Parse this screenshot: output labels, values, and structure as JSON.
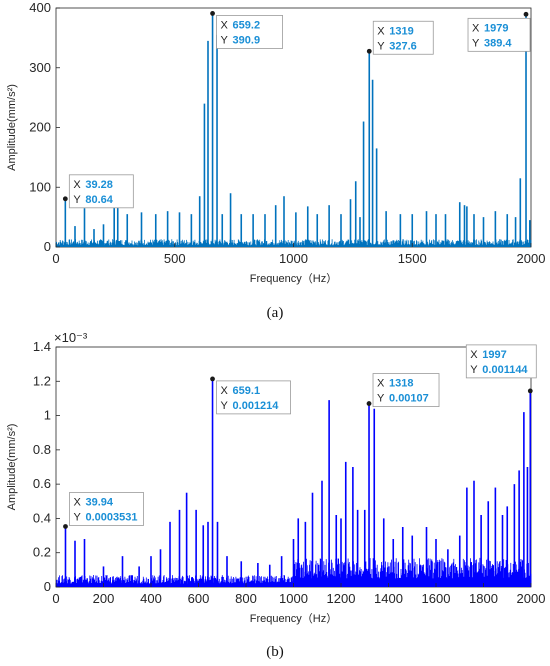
{
  "chart_data": [
    {
      "type": "line",
      "panel_label": "a",
      "xlabel": "Frequency（Hz）",
      "ylabel": "Amplitude(mm/s²)",
      "xlim": [
        0,
        2000
      ],
      "ylim": [
        0,
        400
      ],
      "xticks": [
        "0",
        "500",
        "1000",
        "1500",
        "2000"
      ],
      "yticks": [
        "0",
        "100",
        "200",
        "300",
        "400"
      ],
      "line_color": "#0072BD",
      "grid": false,
      "series": [
        {
          "x": [
            39.28,
            80,
            120,
            160,
            200,
            245,
            260,
            300,
            360,
            420,
            470,
            520,
            570,
            605,
            625,
            640,
            659.2,
            678,
            700,
            735,
            780,
            830,
            880,
            925,
            960,
            1010,
            1060,
            1100,
            1150,
            1200,
            1240,
            1262,
            1280,
            1295,
            1319,
            1333,
            1350,
            1390,
            1450,
            1500,
            1560,
            1600,
            1640,
            1700,
            1720,
            1730,
            1760,
            1800,
            1850,
            1900,
            1935,
            1955,
            1979,
            1995
          ],
          "y": [
            80.64,
            35,
            65,
            30,
            38,
            80,
            70,
            55,
            58,
            55,
            60,
            58,
            55,
            85,
            240,
            345,
            390.9,
            355,
            55,
            90,
            55,
            55,
            55,
            70,
            85,
            58,
            68,
            55,
            70,
            55,
            80,
            110,
            50,
            210,
            327.6,
            280,
            165,
            60,
            55,
            55,
            60,
            55,
            55,
            75,
            70,
            68,
            55,
            50,
            60,
            55,
            50,
            115,
            389.4,
            45
          ]
        }
      ],
      "annotations": [
        {
          "x": 39.28,
          "y": 80.64,
          "x_label": "X",
          "y_label": "Y",
          "x_text": "39.28",
          "y_text": "80.64"
        },
        {
          "x": 659.2,
          "y": 390.9,
          "x_label": "X",
          "y_label": "Y",
          "x_text": "659.2",
          "y_text": "390.9"
        },
        {
          "x": 1319,
          "y": 327.6,
          "x_label": "X",
          "y_label": "Y",
          "x_text": "1319",
          "y_text": "327.6"
        },
        {
          "x": 1979,
          "y": 389.4,
          "x_label": "X",
          "y_label": "Y",
          "x_text": "1979",
          "y_text": "389.4"
        }
      ]
    },
    {
      "type": "line",
      "panel_label": "b",
      "xlabel": "Frequency（Hz）",
      "ylabel": "Amplitude(mm/s²)",
      "y_exponent": "×10⁻³",
      "xlim": [
        0,
        2000
      ],
      "ylim": [
        0,
        1.4
      ],
      "xticks": [
        "0",
        "200",
        "400",
        "600",
        "800",
        "1000",
        "1200",
        "1400",
        "1600",
        "1800",
        "2000"
      ],
      "yticks": [
        "0",
        "0.2",
        "0.4",
        "0.6",
        "0.8",
        "1",
        "1.2",
        "1.4"
      ],
      "line_color": "#0000FF",
      "grid": false,
      "series": [
        {
          "x": [
            39.94,
            80,
            120,
            200,
            280,
            350,
            400,
            440,
            480,
            520,
            550,
            590,
            620,
            640,
            659.1,
            680,
            720,
            780,
            850,
            900,
            950,
            1000,
            1020,
            1050,
            1080,
            1120,
            1150,
            1180,
            1200,
            1220,
            1250,
            1270,
            1300,
            1318,
            1340,
            1380,
            1420,
            1460,
            1500,
            1560,
            1600,
            1650,
            1700,
            1730,
            1760,
            1790,
            1820,
            1850,
            1880,
            1900,
            1930,
            1950,
            1970,
            1985,
            1997
          ],
          "y": [
            0.0003531,
            0.00027,
            0.00028,
            0.00012,
            0.00018,
            0.00012,
            0.00018,
            0.00022,
            0.00038,
            0.00045,
            0.00055,
            0.00045,
            0.00036,
            0.00038,
            0.001214,
            0.00038,
            0.00018,
            0.00015,
            0.00014,
            0.00013,
            0.00018,
            0.00028,
            0.0004,
            0.00038,
            0.00055,
            0.00062,
            0.00109,
            0.00042,
            0.0004,
            0.00073,
            0.0007,
            0.00045,
            0.00045,
            0.00107,
            0.00104,
            0.0004,
            0.00028,
            0.00035,
            0.0003,
            0.00035,
            0.00028,
            0.00022,
            0.0003,
            0.00058,
            0.00062,
            0.00042,
            0.0005,
            0.00058,
            0.00042,
            0.00047,
            0.0006,
            0.00068,
            0.00102,
            0.0007,
            0.001144
          ]
        }
      ],
      "annotations": [
        {
          "x": 39.94,
          "y": 0.0003531,
          "x_label": "X",
          "y_label": "Y",
          "x_text": "39.94",
          "y_text": "0.0003531"
        },
        {
          "x": 659.1,
          "y": 0.001214,
          "x_label": "X",
          "y_label": "Y",
          "x_text": "659.1",
          "y_text": "0.001214"
        },
        {
          "x": 1318,
          "y": 0.00107,
          "x_label": "X",
          "y_label": "Y",
          "x_text": "1318",
          "y_text": "0.00107"
        },
        {
          "x": 1997,
          "y": 0.001144,
          "x_label": "X",
          "y_label": "Y",
          "x_text": "1997",
          "y_text": "0.001144"
        }
      ]
    }
  ],
  "captions": {
    "a": "(a)",
    "b": "(b)"
  },
  "colors": {
    "tip_value": "#1a8fd6",
    "tip_border": "#9a9a9a",
    "tip_bg": "#ffffff",
    "marker": "#1a1a1a"
  }
}
